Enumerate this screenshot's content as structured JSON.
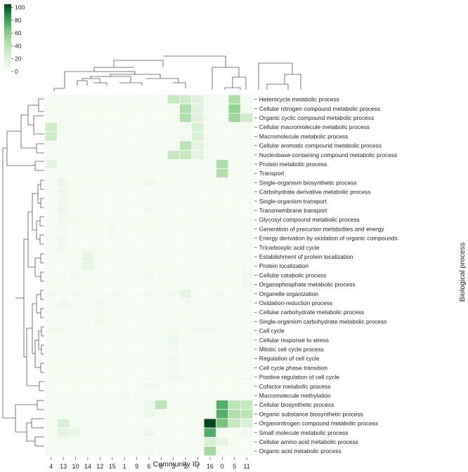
{
  "chart_data": {
    "type": "heatmap",
    "title": "",
    "xlabel": "Community ID",
    "ylabel": "Biological process",
    "colorbar": {
      "ticks": [
        0,
        20,
        40,
        60,
        80,
        100
      ],
      "range": [
        0,
        105
      ],
      "low_color": "#f7fcf5",
      "high_color": "#00441b"
    },
    "communities": [
      "4",
      "13",
      "10",
      "14",
      "12",
      "15",
      "1",
      "9",
      "6",
      "8",
      "3",
      "2",
      "7",
      "16",
      "0",
      "5",
      "11"
    ],
    "processes": [
      "Heterocycle metabolic process",
      "Cellular nitrogen compound metabolic process",
      "Organic cyclic compound metabolic process",
      "Cellular macromolecule metabolic process",
      "Macromolecule metabolic process",
      "Cellular aromatic compound metabolic process",
      "Nucleobase-containing compound metabolic process",
      "Protein metabolic process",
      "Transport",
      "Single-organism biosynthetic process",
      "Carbohydrate derivative metabolic process",
      "Single-organism transport",
      "Transmembrane transport",
      "Glycosyl compound metabolic process",
      "Generation of precursor metabolites and energy",
      "Energy derivation by oxidation of organic compounds",
      "Tricarboxylic acid cycle",
      "Establishment of protein localization",
      "Protein localization",
      "Cellular catabolic process",
      "Organophosphate metabolic process",
      "Organelle organization",
      "Oxidation-reduction process",
      "Cellular carbohydrate metabolic process",
      "Single-organism carbohydrate metabolic process",
      "Cell cycle",
      "Cellular response to stress",
      "Mitotic cell cycle process",
      "Regulation of cell cycle",
      "Cell cycle phase transition",
      "Positive regulation of cell cycle",
      "Cofactor metabolic process",
      "Macromolecule methylation",
      "Cellular biosynthetic process",
      "Organic substance biosynthetic process",
      "Organonitrogen compound metabolic process",
      "Small molecule metabolic process",
      "Cellular amino acid metabolic process",
      "Organic acid metabolic process"
    ],
    "values": [
      [
        3,
        3,
        3,
        3,
        3,
        3,
        3,
        3,
        3,
        3,
        35,
        30,
        20,
        3,
        3,
        45,
        5
      ],
      [
        3,
        3,
        3,
        3,
        3,
        3,
        3,
        3,
        3,
        3,
        4,
        45,
        20,
        3,
        3,
        55,
        5
      ],
      [
        3,
        3,
        3,
        3,
        3,
        3,
        3,
        3,
        3,
        3,
        4,
        45,
        20,
        3,
        3,
        50,
        30
      ],
      [
        30,
        3,
        3,
        3,
        3,
        3,
        3,
        3,
        3,
        3,
        3,
        4,
        25,
        3,
        3,
        3,
        3
      ],
      [
        30,
        3,
        3,
        3,
        3,
        3,
        3,
        3,
        3,
        3,
        3,
        4,
        25,
        3,
        3,
        3,
        3
      ],
      [
        3,
        3,
        3,
        3,
        3,
        3,
        3,
        3,
        3,
        3,
        4,
        40,
        20,
        3,
        3,
        3,
        3
      ],
      [
        3,
        3,
        3,
        3,
        3,
        3,
        3,
        3,
        3,
        3,
        35,
        35,
        20,
        3,
        3,
        3,
        3
      ],
      [
        15,
        3,
        3,
        3,
        3,
        3,
        3,
        3,
        3,
        3,
        3,
        3,
        3,
        3,
        45,
        3,
        3
      ],
      [
        3,
        3,
        3,
        3,
        3,
        3,
        3,
        3,
        3,
        3,
        3,
        3,
        3,
        3,
        45,
        3,
        3
      ],
      [
        3,
        10,
        3,
        3,
        3,
        3,
        3,
        3,
        8,
        3,
        3,
        3,
        3,
        3,
        3,
        3,
        3
      ],
      [
        3,
        8,
        3,
        3,
        3,
        3,
        3,
        3,
        3,
        3,
        3,
        3,
        3,
        3,
        3,
        3,
        3
      ],
      [
        3,
        10,
        3,
        3,
        3,
        3,
        3,
        3,
        3,
        3,
        3,
        3,
        3,
        3,
        3,
        3,
        3
      ],
      [
        3,
        10,
        3,
        3,
        3,
        3,
        3,
        3,
        3,
        3,
        3,
        3,
        3,
        3,
        3,
        3,
        3
      ],
      [
        3,
        7,
        6,
        3,
        3,
        3,
        3,
        3,
        3,
        3,
        3,
        3,
        3,
        3,
        3,
        3,
        3
      ],
      [
        3,
        7,
        3,
        3,
        3,
        6,
        3,
        3,
        3,
        3,
        3,
        3,
        3,
        3,
        3,
        3,
        3
      ],
      [
        3,
        7,
        3,
        3,
        3,
        3,
        3,
        3,
        3,
        3,
        3,
        3,
        3,
        3,
        3,
        3,
        3
      ],
      [
        3,
        7,
        3,
        3,
        3,
        3,
        3,
        3,
        3,
        3,
        3,
        3,
        3,
        3,
        3,
        3,
        3
      ],
      [
        3,
        3,
        3,
        12,
        3,
        3,
        3,
        3,
        3,
        3,
        3,
        3,
        3,
        3,
        3,
        3,
        3
      ],
      [
        3,
        3,
        3,
        12,
        3,
        3,
        3,
        3,
        3,
        3,
        3,
        3,
        3,
        3,
        3,
        3,
        3
      ],
      [
        3,
        3,
        7,
        3,
        3,
        3,
        3,
        3,
        6,
        3,
        3,
        3,
        3,
        3,
        3,
        3,
        8
      ],
      [
        3,
        3,
        3,
        3,
        3,
        3,
        3,
        3,
        3,
        3,
        3,
        3,
        3,
        3,
        3,
        3,
        8
      ],
      [
        3,
        3,
        3,
        3,
        3,
        3,
        3,
        3,
        3,
        3,
        3,
        15,
        3,
        3,
        3,
        3,
        3
      ],
      [
        3,
        6,
        3,
        3,
        6,
        3,
        3,
        3,
        3,
        3,
        3,
        3,
        3,
        3,
        3,
        3,
        3
      ],
      [
        3,
        3,
        3,
        3,
        8,
        3,
        3,
        3,
        3,
        3,
        3,
        3,
        3,
        3,
        3,
        3,
        3
      ],
      [
        3,
        3,
        3,
        3,
        8,
        3,
        3,
        3,
        3,
        3,
        3,
        3,
        3,
        3,
        3,
        3,
        3
      ],
      [
        3,
        3,
        3,
        3,
        3,
        3,
        3,
        3,
        3,
        3,
        7,
        3,
        3,
        3,
        3,
        3,
        3
      ],
      [
        3,
        3,
        3,
        3,
        3,
        3,
        3,
        3,
        3,
        3,
        10,
        3,
        3,
        3,
        3,
        3,
        3
      ],
      [
        3,
        3,
        3,
        3,
        3,
        3,
        3,
        3,
        3,
        3,
        6,
        3,
        3,
        3,
        3,
        3,
        3
      ],
      [
        3,
        3,
        3,
        3,
        3,
        3,
        3,
        3,
        3,
        3,
        6,
        3,
        3,
        3,
        3,
        3,
        3
      ],
      [
        3,
        3,
        3,
        3,
        3,
        3,
        3,
        3,
        3,
        3,
        6,
        3,
        3,
        3,
        3,
        3,
        3
      ],
      [
        3,
        3,
        3,
        3,
        3,
        3,
        3,
        3,
        3,
        3,
        6,
        3,
        3,
        3,
        3,
        3,
        3
      ],
      [
        3,
        3,
        3,
        3,
        3,
        3,
        3,
        3,
        6,
        3,
        3,
        3,
        3,
        3,
        3,
        3,
        3
      ],
      [
        3,
        3,
        3,
        3,
        3,
        3,
        7,
        3,
        3,
        3,
        3,
        3,
        3,
        3,
        3,
        3,
        3
      ],
      [
        3,
        3,
        3,
        3,
        3,
        3,
        3,
        3,
        12,
        40,
        3,
        3,
        3,
        3,
        75,
        40,
        35
      ],
      [
        3,
        3,
        3,
        3,
        3,
        3,
        3,
        3,
        10,
        3,
        3,
        3,
        3,
        3,
        75,
        45,
        40
      ],
      [
        3,
        25,
        3,
        3,
        3,
        3,
        3,
        3,
        3,
        3,
        3,
        3,
        3,
        105,
        65,
        35,
        25
      ],
      [
        3,
        15,
        12,
        3,
        3,
        3,
        3,
        3,
        10,
        3,
        3,
        3,
        3,
        75,
        3,
        3,
        6
      ],
      [
        3,
        3,
        3,
        3,
        3,
        3,
        3,
        3,
        3,
        3,
        3,
        3,
        3,
        25,
        15,
        3,
        3
      ],
      [
        3,
        3,
        3,
        3,
        3,
        3,
        3,
        3,
        6,
        3,
        3,
        3,
        3,
        50,
        3,
        3,
        3
      ]
    ]
  }
}
